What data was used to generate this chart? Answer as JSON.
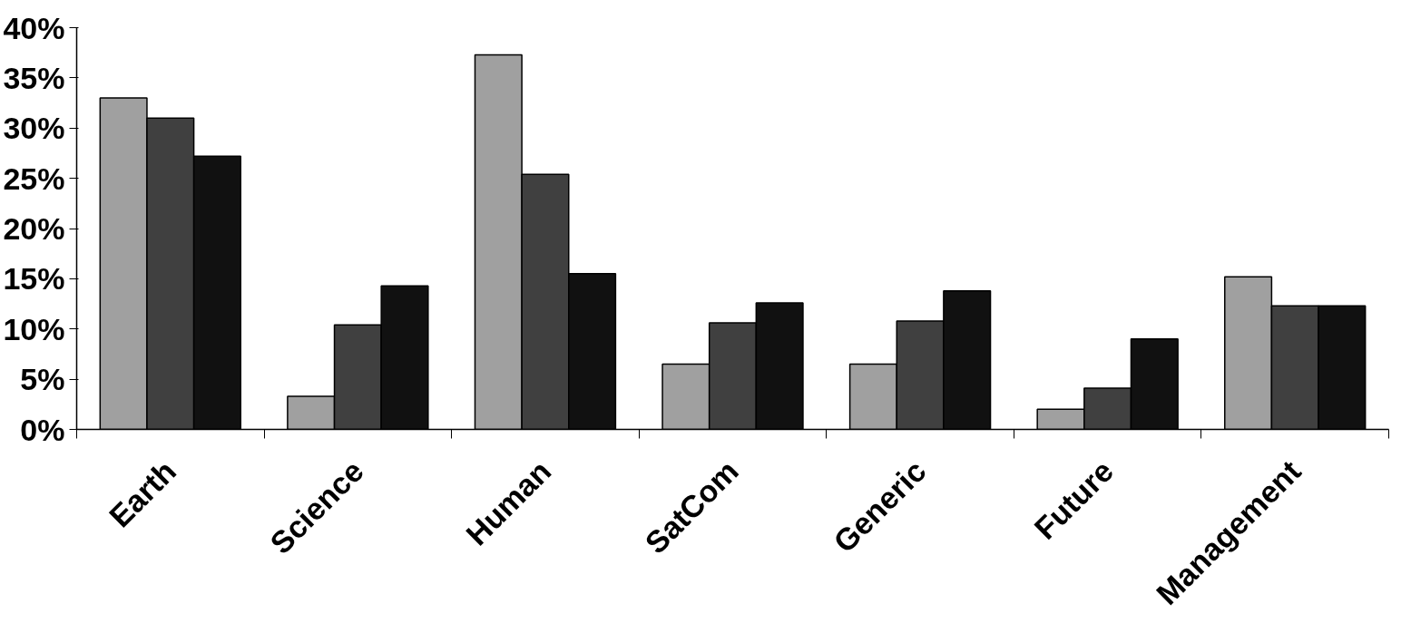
{
  "chart_data": {
    "type": "bar",
    "categories": [
      "Earth",
      "Science",
      "Human",
      "SatCom",
      "Generic",
      "Future",
      "Management"
    ],
    "series": [
      {
        "color": "#a0a0a0",
        "values": [
          33,
          3.3,
          37.3,
          6.5,
          6.5,
          2,
          15.2
        ]
      },
      {
        "color": "#404040",
        "values": [
          31,
          10.4,
          25.4,
          10.6,
          10.8,
          4.1,
          12.3
        ]
      },
      {
        "color": "#111111",
        "values": [
          27.2,
          14.3,
          15.5,
          12.6,
          13.8,
          9,
          12.3
        ]
      }
    ],
    "ylim": [
      0,
      40
    ],
    "yticks": [
      {
        "value": 0,
        "label": "0%"
      },
      {
        "value": 5,
        "label": "5%"
      },
      {
        "value": 10,
        "label": "10%"
      },
      {
        "value": 15,
        "label": "15%"
      },
      {
        "value": 20,
        "label": "20%"
      },
      {
        "value": 25,
        "label": "25%"
      },
      {
        "value": 30,
        "label": "30%"
      },
      {
        "value": 35,
        "label": "35%"
      },
      {
        "value": 40,
        "label": "40%"
      }
    ],
    "grid": false
  }
}
